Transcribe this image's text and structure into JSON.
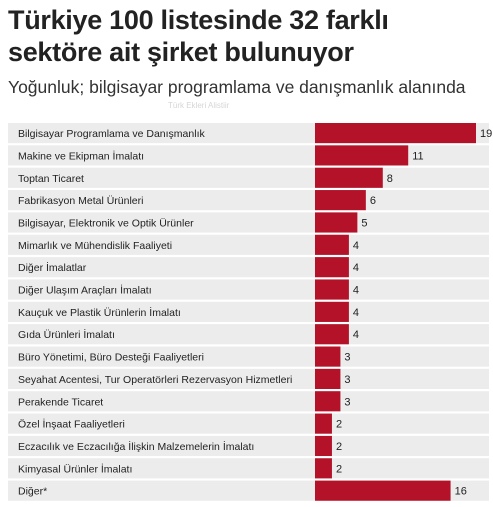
{
  "header": {
    "title": "Türkiye 100 listesinde 32 farklı sektöre ait şirket bulunuyor",
    "subtitle": "Yoğunluk; bilgisayar programlama ve danışmanlık alanında",
    "watermark": "Türk Ekleri Alistiir"
  },
  "chart_data": {
    "type": "bar",
    "orientation": "horizontal",
    "categories": [
      "Bilgisayar Programlama ve Danışmanlık",
      "Makine ve Ekipman İmalatı",
      "Toptan Ticaret",
      "Fabrikasyon Metal Ürünleri",
      "Bilgisayar, Elektronik ve Optik Ürünler",
      "Mimarlık ve Mühendislik Faaliyeti",
      "Diğer İmalatlar",
      "Diğer Ulaşım Araçları İmalatı",
      "Kauçuk ve Plastik Ürünlerin İmalatı",
      "Gıda Ürünleri İmalatı",
      "Büro Yönetimi, Büro Desteği Faaliyetleri",
      "Seyahat Acentesi, Tur Operatörleri Rezervasyon Hizmetleri",
      "Perakende Ticaret",
      "Özel İnşaat Faaliyetleri",
      "Eczacılık ve Eczacılığa İlişkin Malzemelerin İmalatı",
      "Kimyasal Ürünler İmalatı",
      "Diğer*"
    ],
    "values": [
      19,
      11,
      8,
      6,
      5,
      4,
      4,
      4,
      4,
      4,
      3,
      3,
      3,
      2,
      2,
      2,
      16
    ],
    "xlim": [
      0,
      19
    ],
    "grid": false,
    "legend": "none",
    "colors": {
      "bar": "#b31229",
      "row_background": "#ececec"
    }
  }
}
